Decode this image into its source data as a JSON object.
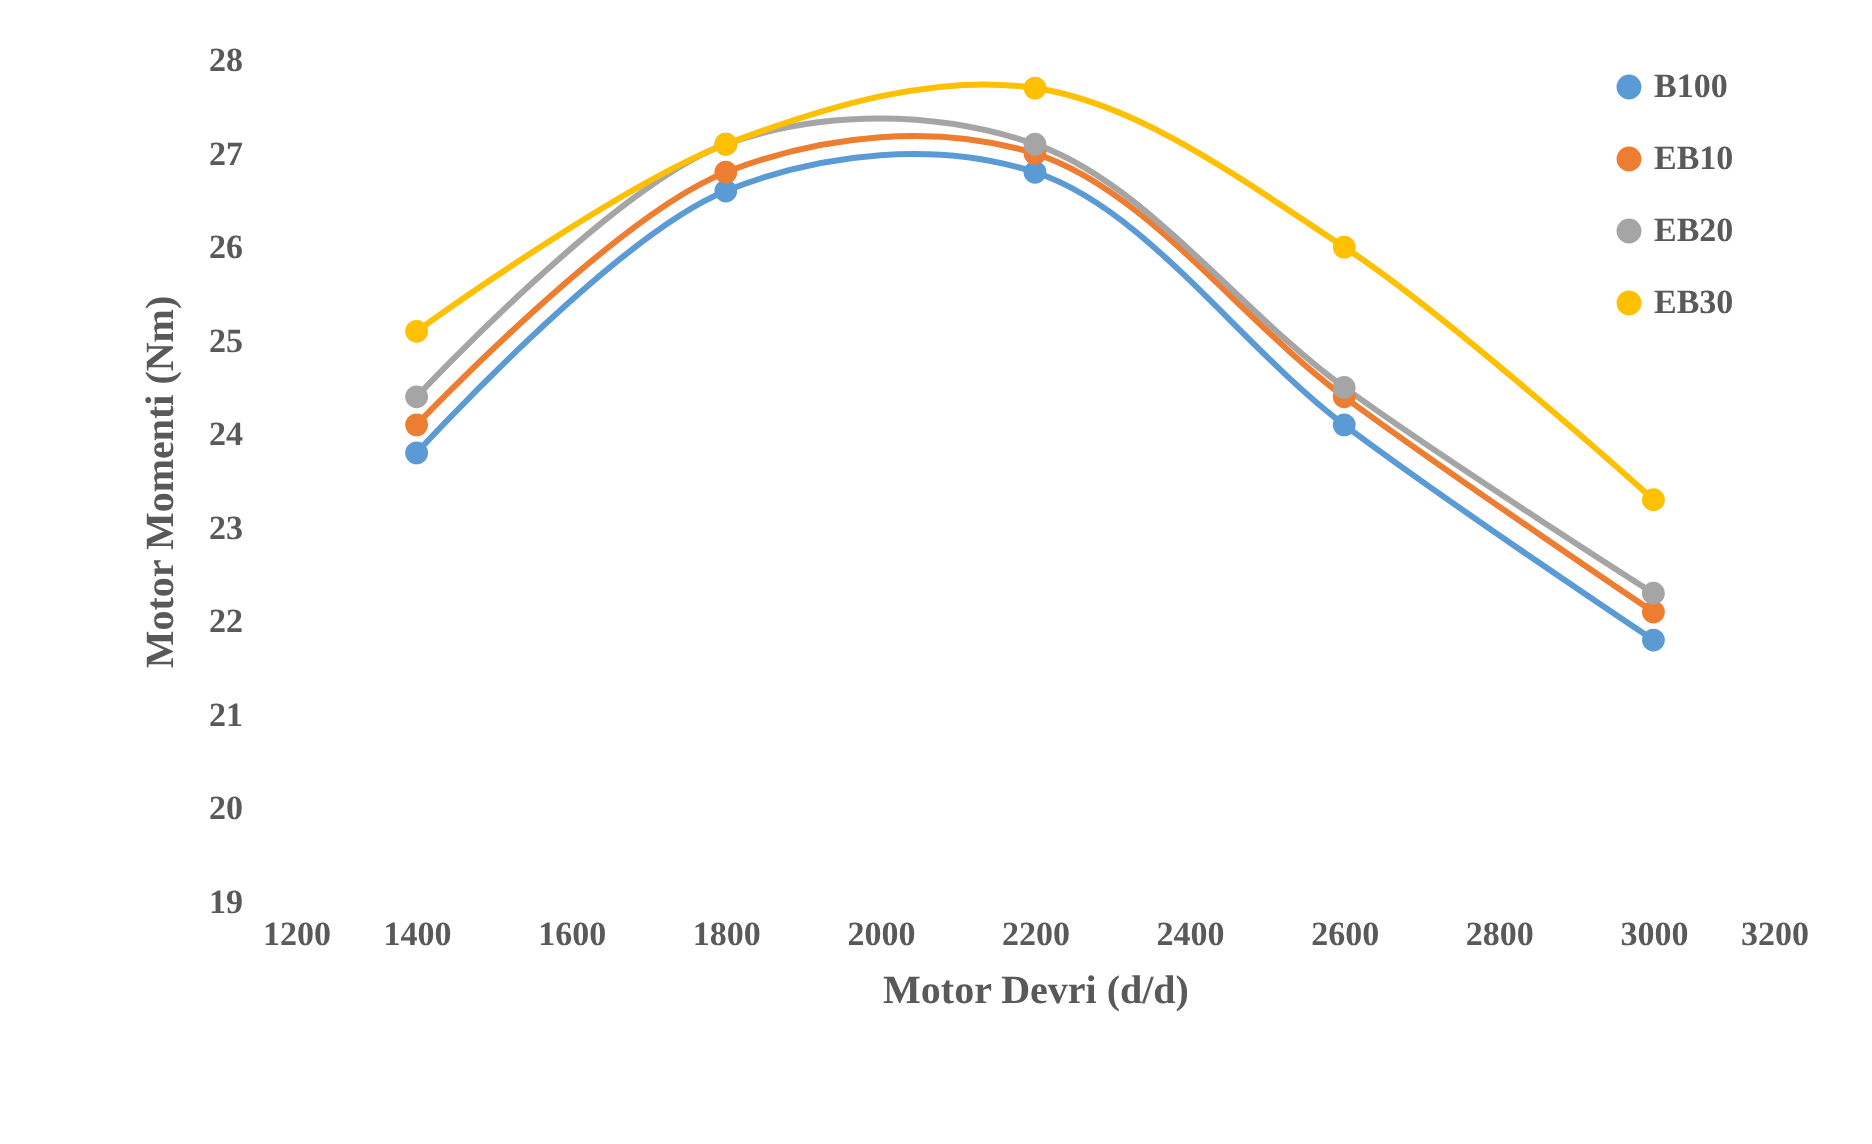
{
  "chart_data": {
    "type": "line",
    "xlabel": "Motor Devri (d/d)",
    "ylabel": "Motor Momenti (Nm)",
    "x": [
      1400,
      1800,
      2200,
      2600,
      3000
    ],
    "series": [
      {
        "name": "B100",
        "color": "#5b9bd5",
        "values": [
          23.8,
          26.6,
          26.8,
          24.1,
          21.8
        ]
      },
      {
        "name": "EB10",
        "color": "#ed7d31",
        "values": [
          24.1,
          26.8,
          27.0,
          24.4,
          22.1
        ]
      },
      {
        "name": "EB20",
        "color": "#a5a5a5",
        "values": [
          24.4,
          27.1,
          27.1,
          24.5,
          22.3
        ]
      },
      {
        "name": "EB30",
        "color": "#ffc000",
        "values": [
          25.1,
          27.1,
          27.7,
          26.0,
          23.3
        ]
      }
    ],
    "xlim": [
      1200,
      3200
    ],
    "xticks": [
      1200,
      1400,
      1600,
      1800,
      2000,
      2200,
      2400,
      2600,
      2800,
      3000,
      3200
    ],
    "ylim": [
      19,
      28
    ],
    "yticks": [
      19,
      20,
      21,
      22,
      23,
      24,
      25,
      26,
      27,
      28
    ],
    "grid": false,
    "legend": "top right",
    "marker": "circle",
    "line_style": "solid"
  }
}
